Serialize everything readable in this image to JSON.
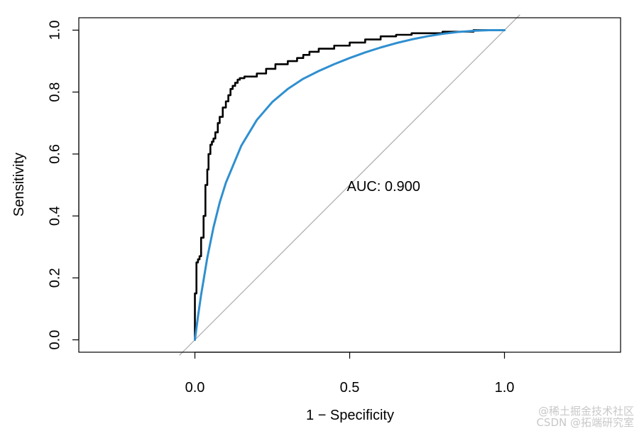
{
  "chart_data": {
    "type": "line",
    "title": "",
    "xlabel": "1 − Specificity",
    "ylabel": "Sensitivity",
    "xlim": [
      -0.375,
      1.375
    ],
    "ylim": [
      -0.04,
      1.04
    ],
    "x_ticks": [
      0.0,
      0.5,
      1.0
    ],
    "y_ticks": [
      0.0,
      0.2,
      0.4,
      0.6,
      0.8,
      1.0
    ],
    "x_tick_labels": [
      "0.0",
      "0.5",
      "1.0"
    ],
    "y_tick_labels": [
      "0.0",
      "0.2",
      "0.4",
      "0.6",
      "0.8",
      "1.0"
    ],
    "grid": false,
    "legend": "none",
    "annotation": "AUC: 0.900",
    "annotation_position": [
      0.5,
      0.48
    ],
    "reference_line": {
      "from": [
        -0.05,
        -0.05
      ],
      "to": [
        1.05,
        1.05
      ],
      "color": "#aaaaaa"
    },
    "series": [
      {
        "color": "#000000",
        "style": "step",
        "x": [
          0.0,
          0.0,
          0.005,
          0.005,
          0.01,
          0.01,
          0.015,
          0.015,
          0.02,
          0.02,
          0.028,
          0.028,
          0.034,
          0.034,
          0.04,
          0.04,
          0.044,
          0.044,
          0.05,
          0.05,
          0.055,
          0.055,
          0.06,
          0.06,
          0.066,
          0.066,
          0.074,
          0.074,
          0.08,
          0.08,
          0.09,
          0.09,
          0.1,
          0.1,
          0.108,
          0.108,
          0.115,
          0.115,
          0.122,
          0.122,
          0.13,
          0.13,
          0.138,
          0.138,
          0.145,
          0.145,
          0.16,
          0.16,
          0.2,
          0.2,
          0.23,
          0.23,
          0.26,
          0.26,
          0.3,
          0.3,
          0.33,
          0.33,
          0.35,
          0.35,
          0.37,
          0.37,
          0.4,
          0.4,
          0.45,
          0.45,
          0.5,
          0.5,
          0.55,
          0.55,
          0.6,
          0.6,
          0.65,
          0.65,
          0.7,
          0.7,
          0.8,
          0.8,
          0.9,
          0.9,
          1.0
        ],
        "y": [
          0.0,
          0.15,
          0.15,
          0.25,
          0.25,
          0.26,
          0.26,
          0.27,
          0.27,
          0.33,
          0.33,
          0.4,
          0.4,
          0.5,
          0.5,
          0.55,
          0.55,
          0.6,
          0.6,
          0.63,
          0.63,
          0.64,
          0.64,
          0.65,
          0.65,
          0.67,
          0.67,
          0.7,
          0.7,
          0.72,
          0.72,
          0.75,
          0.75,
          0.77,
          0.77,
          0.79,
          0.79,
          0.81,
          0.81,
          0.82,
          0.82,
          0.83,
          0.83,
          0.84,
          0.84,
          0.845,
          0.845,
          0.85,
          0.85,
          0.86,
          0.86,
          0.875,
          0.875,
          0.89,
          0.89,
          0.9,
          0.9,
          0.91,
          0.91,
          0.92,
          0.92,
          0.93,
          0.93,
          0.94,
          0.94,
          0.95,
          0.95,
          0.96,
          0.96,
          0.97,
          0.97,
          0.98,
          0.98,
          0.985,
          0.985,
          0.99,
          0.99,
          0.995,
          0.995,
          1.0,
          1.0
        ]
      },
      {
        "color": "#2f8fd0",
        "style": "smooth",
        "x": [
          0.0,
          0.01,
          0.02,
          0.04,
          0.06,
          0.08,
          0.1,
          0.15,
          0.2,
          0.25,
          0.3,
          0.35,
          0.4,
          0.45,
          0.5,
          0.55,
          0.6,
          0.65,
          0.7,
          0.75,
          0.8,
          0.85,
          0.9,
          0.95,
          1.0
        ],
        "y": [
          0.0,
          0.076,
          0.145,
          0.265,
          0.363,
          0.443,
          0.507,
          0.627,
          0.71,
          0.768,
          0.81,
          0.843,
          0.868,
          0.89,
          0.91,
          0.928,
          0.944,
          0.958,
          0.97,
          0.98,
          0.988,
          0.994,
          0.998,
          1.0,
          1.0
        ]
      }
    ]
  },
  "watermark": {
    "line1": "@稀土掘金技术社区",
    "line2": "CSDN @拓端研究室"
  }
}
